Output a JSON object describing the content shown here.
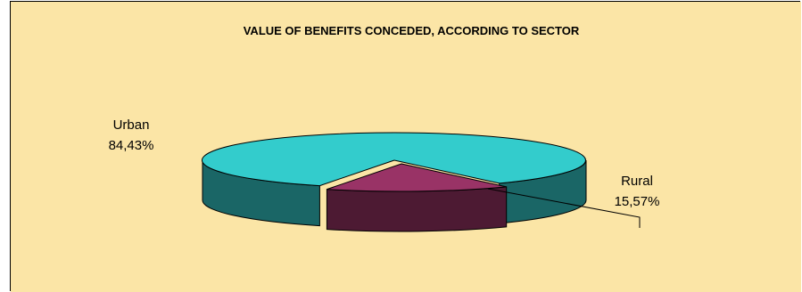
{
  "chart_data": {
    "type": "pie",
    "style": "3d-exploded",
    "title": "VALUE OF BENEFITS CONCEDED, ACCORDING TO SECTOR",
    "slices": [
      {
        "label": "Urban",
        "value": 84.43,
        "value_label": "84,43%",
        "top_color": "#33cccc",
        "side_color": "#1a6666"
      },
      {
        "label": "Rural",
        "value": 15.57,
        "value_label": "15,57%",
        "top_color": "#993366",
        "side_color": "#4d1a33"
      }
    ],
    "background": "#fbe5a6"
  }
}
